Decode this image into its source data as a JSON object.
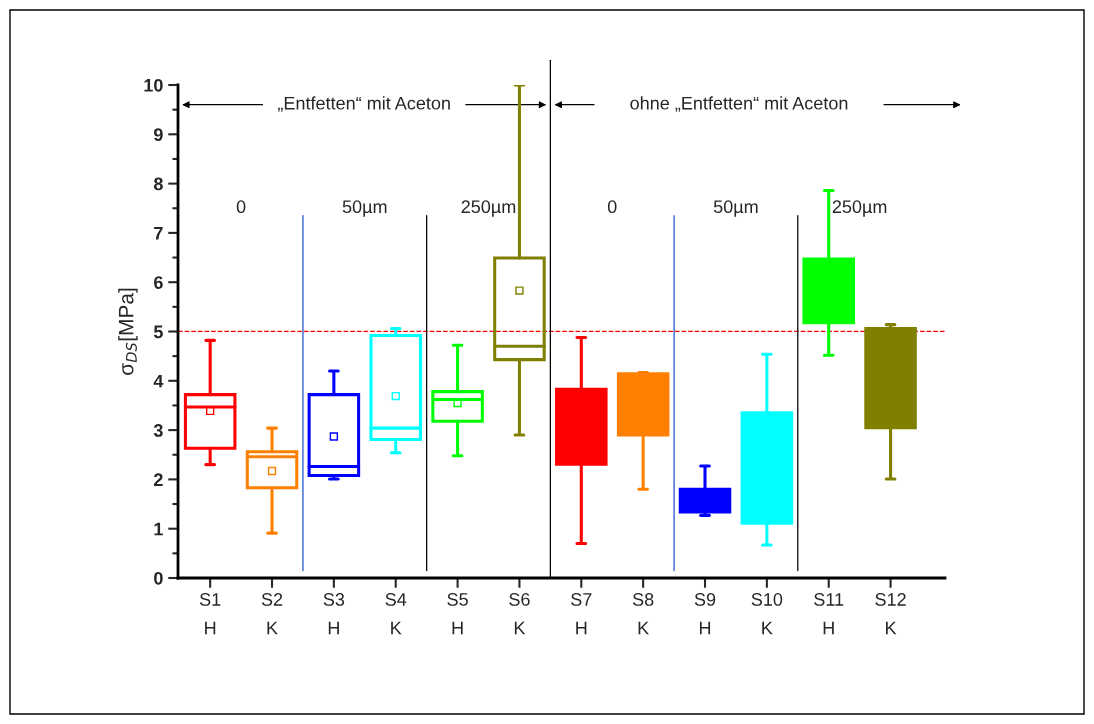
{
  "chart_data": {
    "type": "box",
    "ylabel": "σ$_{DS}$[MPa]",
    "categories": [
      "S1\nH",
      "S2\nK",
      "S3\nH",
      "S4\nK",
      "S5\nH",
      "S6\nK",
      "S7\nH",
      "S8\nK",
      "S9\nH",
      "S10\nK",
      "S11\nH",
      "S12\nK"
    ],
    "colors": [
      "#ff0000",
      "#ff8000",
      "#0000ff",
      "#00ffff",
      "#00ff00",
      "#808000",
      "#ff0000",
      "#ff8000",
      "#0000ff",
      "#00ffff",
      "#00ff00",
      "#808000"
    ],
    "boxes": [
      {
        "low": 2.3,
        "q1": 2.63,
        "median": 3.47,
        "q3": 3.72,
        "high": 4.82,
        "mean": 3.39
      },
      {
        "low": 0.91,
        "q1": 1.83,
        "median": 2.46,
        "q3": 2.56,
        "high": 3.04,
        "mean": 2.17
      },
      {
        "low": 2.01,
        "q1": 2.08,
        "median": 2.26,
        "q3": 3.72,
        "high": 4.2,
        "mean": 2.87
      },
      {
        "low": 2.54,
        "q1": 2.81,
        "median": 3.04,
        "q3": 4.92,
        "high": 5.06,
        "mean": 3.69
      },
      {
        "low": 2.48,
        "q1": 3.18,
        "median": 3.62,
        "q3": 3.78,
        "high": 4.72,
        "mean": 3.55
      },
      {
        "low": 2.9,
        "q1": 4.43,
        "median": 4.7,
        "q3": 6.49,
        "high": 10,
        "mean": 5.83
      },
      {
        "low": 0.7,
        "q1": 2.31,
        "median": null,
        "q3": 3.83,
        "high": 4.88
      },
      {
        "low": 1.8,
        "q1": 2.9,
        "median": null,
        "q3": 4.14,
        "high": 4.17
      },
      {
        "low": 1.27,
        "q1": 1.34,
        "median": null,
        "q3": 1.8,
        "high": 2.27
      },
      {
        "low": 0.67,
        "q1": 1.11,
        "median": null,
        "q3": 3.35,
        "high": 4.54
      },
      {
        "low": 4.52,
        "q1": 5.18,
        "median": null,
        "q3": 6.47,
        "high": 7.86
      },
      {
        "low": 2.01,
        "q1": 3.05,
        "median": null,
        "q3": 5.06,
        "high": 5.14
      }
    ],
    "ylim": [
      0,
      10
    ],
    "yticks": [
      0,
      1,
      2,
      3,
      4,
      5,
      6,
      7,
      8,
      9,
      10
    ],
    "ref_lines": [
      {
        "axis": "y",
        "value": 5,
        "color": "#ff0000",
        "line_style": "dashed"
      }
    ],
    "annotations": [
      "„Entfetten“ mit Aceton",
      "ohne „Entfetten“ mit Aceton",
      "0",
      "50µm",
      "250µm",
      "0",
      "50µm",
      "250µm"
    ],
    "grid": false,
    "legend": false
  }
}
